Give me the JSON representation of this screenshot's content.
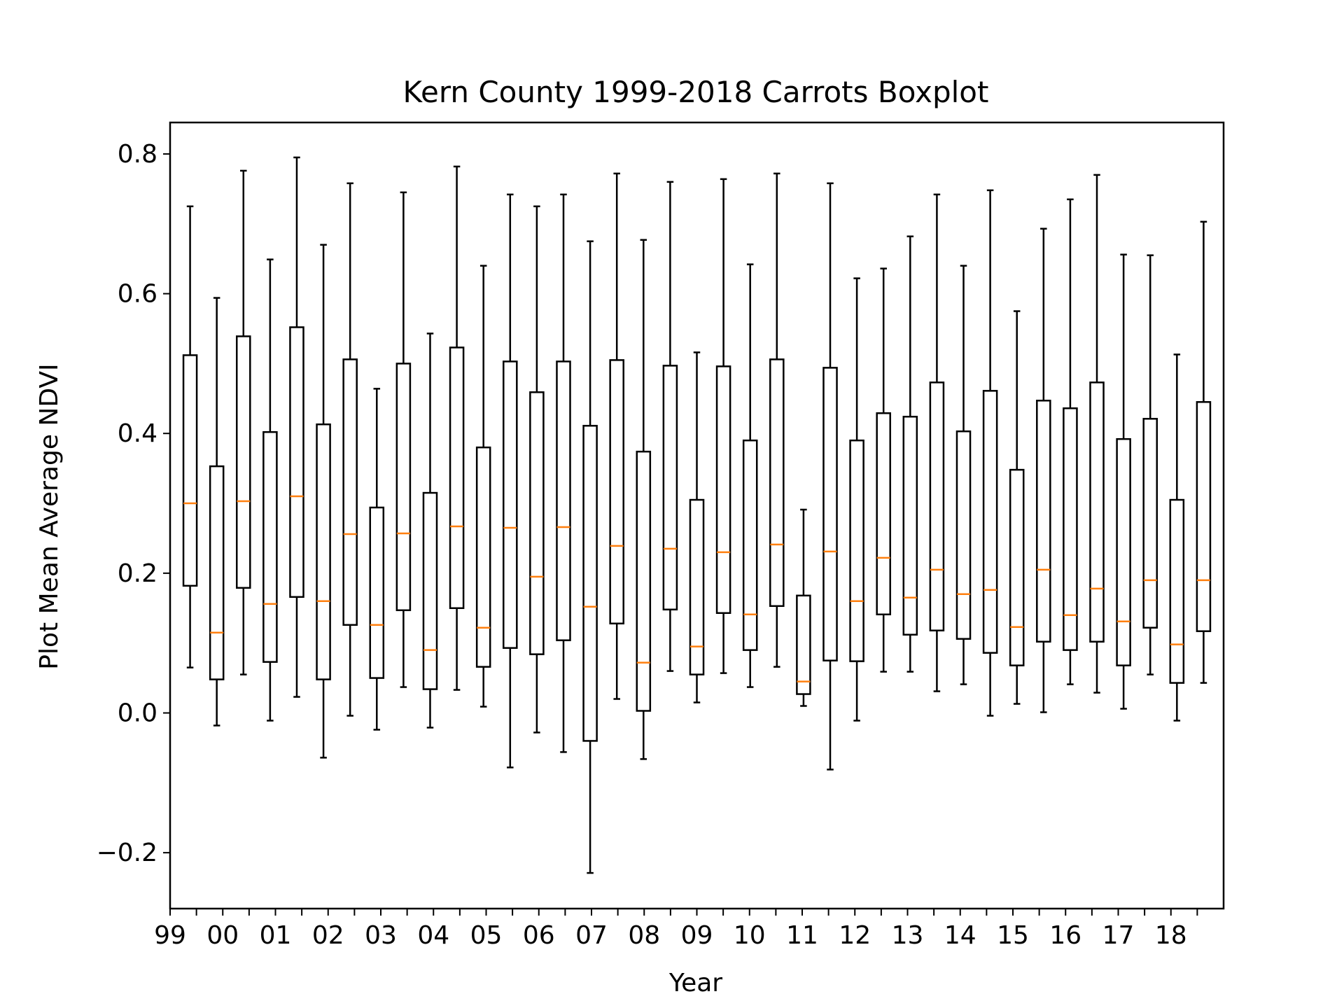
{
  "chart_data": {
    "type": "boxplot",
    "title": "Kern County 1999-2018 Carrots Boxplot",
    "xlabel": "Year",
    "ylabel": "Plot Mean Average NDVI",
    "ylim": [
      -0.28,
      0.845
    ],
    "yticks": [
      -0.2,
      0.0,
      0.2,
      0.4,
      0.6,
      0.8
    ],
    "ytick_labels": [
      "−0.2",
      "0.0",
      "0.2",
      "0.4",
      "0.6",
      "0.8"
    ],
    "xticks_labeled": [
      "99",
      "00",
      "01",
      "02",
      "03",
      "04",
      "05",
      "06",
      "07",
      "08",
      "09",
      "10",
      "11",
      "12",
      "13",
      "14",
      "15",
      "16",
      "17",
      "18"
    ],
    "grid": false,
    "colors": {
      "box": "#000000",
      "median": "#ff7f0e"
    },
    "boxes": [
      {
        "whislo": 0.065,
        "q1": 0.182,
        "med": 0.3,
        "q3": 0.512,
        "whishi": 0.725
      },
      {
        "whislo": -0.018,
        "q1": 0.048,
        "med": 0.115,
        "q3": 0.353,
        "whishi": 0.594
      },
      {
        "whislo": 0.055,
        "q1": 0.179,
        "med": 0.303,
        "q3": 0.539,
        "whishi": 0.776
      },
      {
        "whislo": -0.011,
        "q1": 0.073,
        "med": 0.156,
        "q3": 0.402,
        "whishi": 0.649
      },
      {
        "whislo": 0.023,
        "q1": 0.166,
        "med": 0.31,
        "q3": 0.552,
        "whishi": 0.795
      },
      {
        "whislo": -0.064,
        "q1": 0.048,
        "med": 0.16,
        "q3": 0.413,
        "whishi": 0.67
      },
      {
        "whislo": -0.004,
        "q1": 0.126,
        "med": 0.256,
        "q3": 0.506,
        "whishi": 0.758
      },
      {
        "whislo": -0.024,
        "q1": 0.05,
        "med": 0.126,
        "q3": 0.294,
        "whishi": 0.464
      },
      {
        "whislo": 0.037,
        "q1": 0.147,
        "med": 0.257,
        "q3": 0.5,
        "whishi": 0.745
      },
      {
        "whislo": -0.021,
        "q1": 0.034,
        "med": 0.09,
        "q3": 0.315,
        "whishi": 0.543
      },
      {
        "whislo": 0.033,
        "q1": 0.15,
        "med": 0.267,
        "q3": 0.523,
        "whishi": 0.782
      },
      {
        "whislo": 0.009,
        "q1": 0.066,
        "med": 0.122,
        "q3": 0.38,
        "whishi": 0.64
      },
      {
        "whislo": -0.078,
        "q1": 0.093,
        "med": 0.265,
        "q3": 0.503,
        "whishi": 0.742
      },
      {
        "whislo": -0.028,
        "q1": 0.084,
        "med": 0.195,
        "q3": 0.459,
        "whishi": 0.725
      },
      {
        "whislo": -0.056,
        "q1": 0.104,
        "med": 0.266,
        "q3": 0.503,
        "whishi": 0.742
      },
      {
        "whislo": -0.229,
        "q1": -0.04,
        "med": 0.152,
        "q3": 0.411,
        "whishi": 0.675
      },
      {
        "whislo": 0.02,
        "q1": 0.128,
        "med": 0.239,
        "q3": 0.505,
        "whishi": 0.772
      },
      {
        "whislo": -0.066,
        "q1": 0.003,
        "med": 0.072,
        "q3": 0.374,
        "whishi": 0.677
      },
      {
        "whislo": 0.06,
        "q1": 0.148,
        "med": 0.235,
        "q3": 0.497,
        "whishi": 0.76
      },
      {
        "whislo": 0.015,
        "q1": 0.055,
        "med": 0.095,
        "q3": 0.305,
        "whishi": 0.516
      },
      {
        "whislo": 0.057,
        "q1": 0.143,
        "med": 0.23,
        "q3": 0.496,
        "whishi": 0.764
      },
      {
        "whislo": 0.037,
        "q1": 0.09,
        "med": 0.141,
        "q3": 0.39,
        "whishi": 0.642
      },
      {
        "whislo": 0.066,
        "q1": 0.153,
        "med": 0.241,
        "q3": 0.506,
        "whishi": 0.772
      },
      {
        "whislo": 0.01,
        "q1": 0.027,
        "med": 0.045,
        "q3": 0.168,
        "whishi": 0.291
      },
      {
        "whislo": -0.081,
        "q1": 0.075,
        "med": 0.231,
        "q3": 0.494,
        "whishi": 0.758
      },
      {
        "whislo": -0.011,
        "q1": 0.074,
        "med": 0.16,
        "q3": 0.39,
        "whishi": 0.622
      },
      {
        "whislo": 0.059,
        "q1": 0.141,
        "med": 0.222,
        "q3": 0.429,
        "whishi": 0.636
      },
      {
        "whislo": 0.059,
        "q1": 0.112,
        "med": 0.165,
        "q3": 0.424,
        "whishi": 0.682
      },
      {
        "whislo": 0.031,
        "q1": 0.118,
        "med": 0.205,
        "q3": 0.473,
        "whishi": 0.742
      },
      {
        "whislo": 0.041,
        "q1": 0.106,
        "med": 0.17,
        "q3": 0.403,
        "whishi": 0.64
      },
      {
        "whislo": -0.004,
        "q1": 0.086,
        "med": 0.176,
        "q3": 0.461,
        "whishi": 0.748
      },
      {
        "whislo": 0.013,
        "q1": 0.068,
        "med": 0.123,
        "q3": 0.348,
        "whishi": 0.575
      },
      {
        "whislo": 0.001,
        "q1": 0.102,
        "med": 0.205,
        "q3": 0.447,
        "whishi": 0.693
      },
      {
        "whislo": 0.041,
        "q1": 0.09,
        "med": 0.14,
        "q3": 0.436,
        "whishi": 0.735
      },
      {
        "whislo": 0.029,
        "q1": 0.102,
        "med": 0.178,
        "q3": 0.473,
        "whishi": 0.77
      },
      {
        "whislo": 0.006,
        "q1": 0.068,
        "med": 0.131,
        "q3": 0.392,
        "whishi": 0.656
      },
      {
        "whislo": 0.055,
        "q1": 0.122,
        "med": 0.19,
        "q3": 0.421,
        "whishi": 0.655
      },
      {
        "whislo": -0.011,
        "q1": 0.043,
        "med": 0.098,
        "q3": 0.305,
        "whishi": 0.513
      },
      {
        "whislo": 0.043,
        "q1": 0.117,
        "med": 0.19,
        "q3": 0.445,
        "whishi": 0.703
      }
    ]
  }
}
